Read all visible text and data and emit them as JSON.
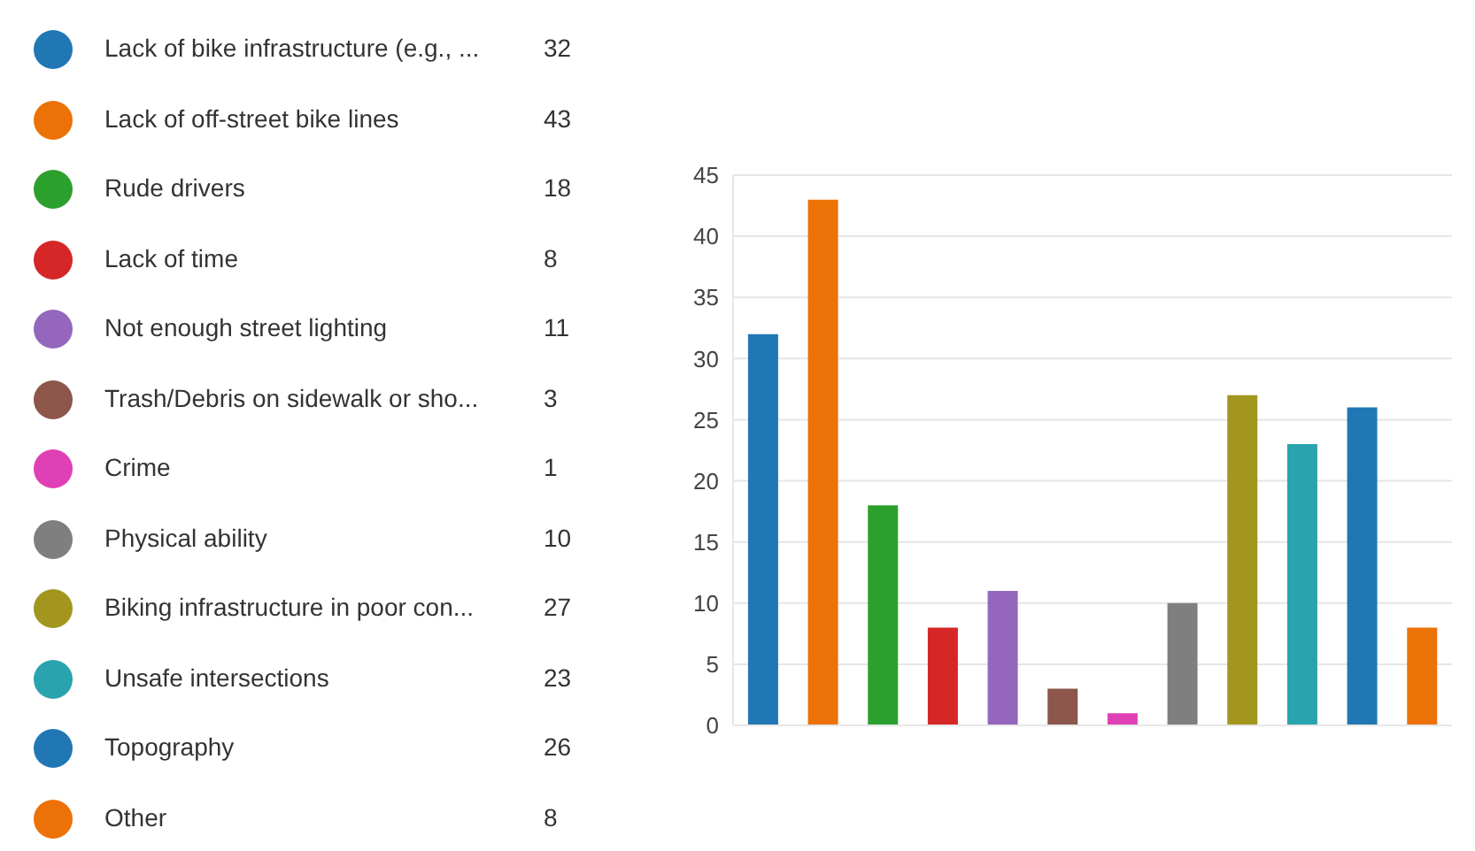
{
  "chart_data": {
    "type": "bar",
    "stacked": true,
    "categories": [
      null,
      null,
      null,
      null,
      null,
      null,
      null,
      null,
      null,
      null,
      null,
      null
    ],
    "series": [
      {
        "name": "Lack of bike infrastructure (e.g., ...",
        "color": "#2077b4",
        "values": [
          32,
          null,
          null,
          null,
          null,
          null,
          null,
          null,
          null,
          null,
          null,
          null
        ]
      },
      {
        "name": "Lack of off-street bike lines",
        "color": "#ec7106",
        "values": [
          null,
          43,
          null,
          null,
          null,
          null,
          null,
          null,
          null,
          null,
          null,
          null
        ]
      },
      {
        "name": "Rude drivers",
        "color": "#2ca02c",
        "values": [
          null,
          null,
          18,
          null,
          null,
          null,
          null,
          null,
          null,
          null,
          null,
          null
        ]
      },
      {
        "name": "Lack of time",
        "color": "#d62728",
        "values": [
          null,
          null,
          null,
          8,
          null,
          null,
          null,
          null,
          null,
          null,
          null,
          null
        ]
      },
      {
        "name": "Not enough street lighting",
        "color": "#9467bd",
        "values": [
          null,
          null,
          null,
          null,
          11,
          null,
          null,
          null,
          null,
          null,
          null,
          null
        ]
      },
      {
        "name": "Trash/Debris on sidewalk or sho...",
        "color": "#8c564b",
        "values": [
          null,
          null,
          null,
          null,
          null,
          3,
          null,
          null,
          null,
          null,
          null,
          null
        ]
      },
      {
        "name": "Crime",
        "color": "#e040b5",
        "values": [
          null,
          null,
          null,
          null,
          null,
          null,
          1,
          null,
          null,
          null,
          null,
          null
        ]
      },
      {
        "name": "Physical ability",
        "color": "#7f7f7f",
        "values": [
          null,
          null,
          null,
          null,
          null,
          null,
          null,
          10,
          null,
          null,
          null,
          null
        ]
      },
      {
        "name": "Biking infrastructure in poor con...",
        "color": "#a3961e",
        "values": [
          null,
          null,
          null,
          null,
          null,
          null,
          null,
          null,
          27,
          null,
          null,
          null
        ]
      },
      {
        "name": "Unsafe intersections",
        "color": "#29a3ad",
        "values": [
          null,
          null,
          null,
          null,
          null,
          null,
          null,
          null,
          null,
          23,
          null,
          null
        ]
      },
      {
        "name": "Topography",
        "color": "#2077b4",
        "values": [
          null,
          null,
          null,
          null,
          null,
          null,
          null,
          null,
          null,
          null,
          26,
          null
        ]
      },
      {
        "name": "Other",
        "color": "#ec7106",
        "values": [
          null,
          null,
          null,
          null,
          null,
          null,
          null,
          null,
          null,
          null,
          null,
          8
        ]
      }
    ],
    "ylim": [
      0,
      45
    ],
    "yticks": [
      0,
      5,
      10,
      15,
      20,
      25,
      30,
      35,
      40,
      45
    ],
    "annotations": [
      "32",
      "43",
      "18",
      "8",
      "11",
      "3",
      "1",
      "10",
      "27",
      "23",
      "26",
      "8"
    ],
    "grid": "y",
    "legend": "left",
    "tick_labels": "y"
  }
}
